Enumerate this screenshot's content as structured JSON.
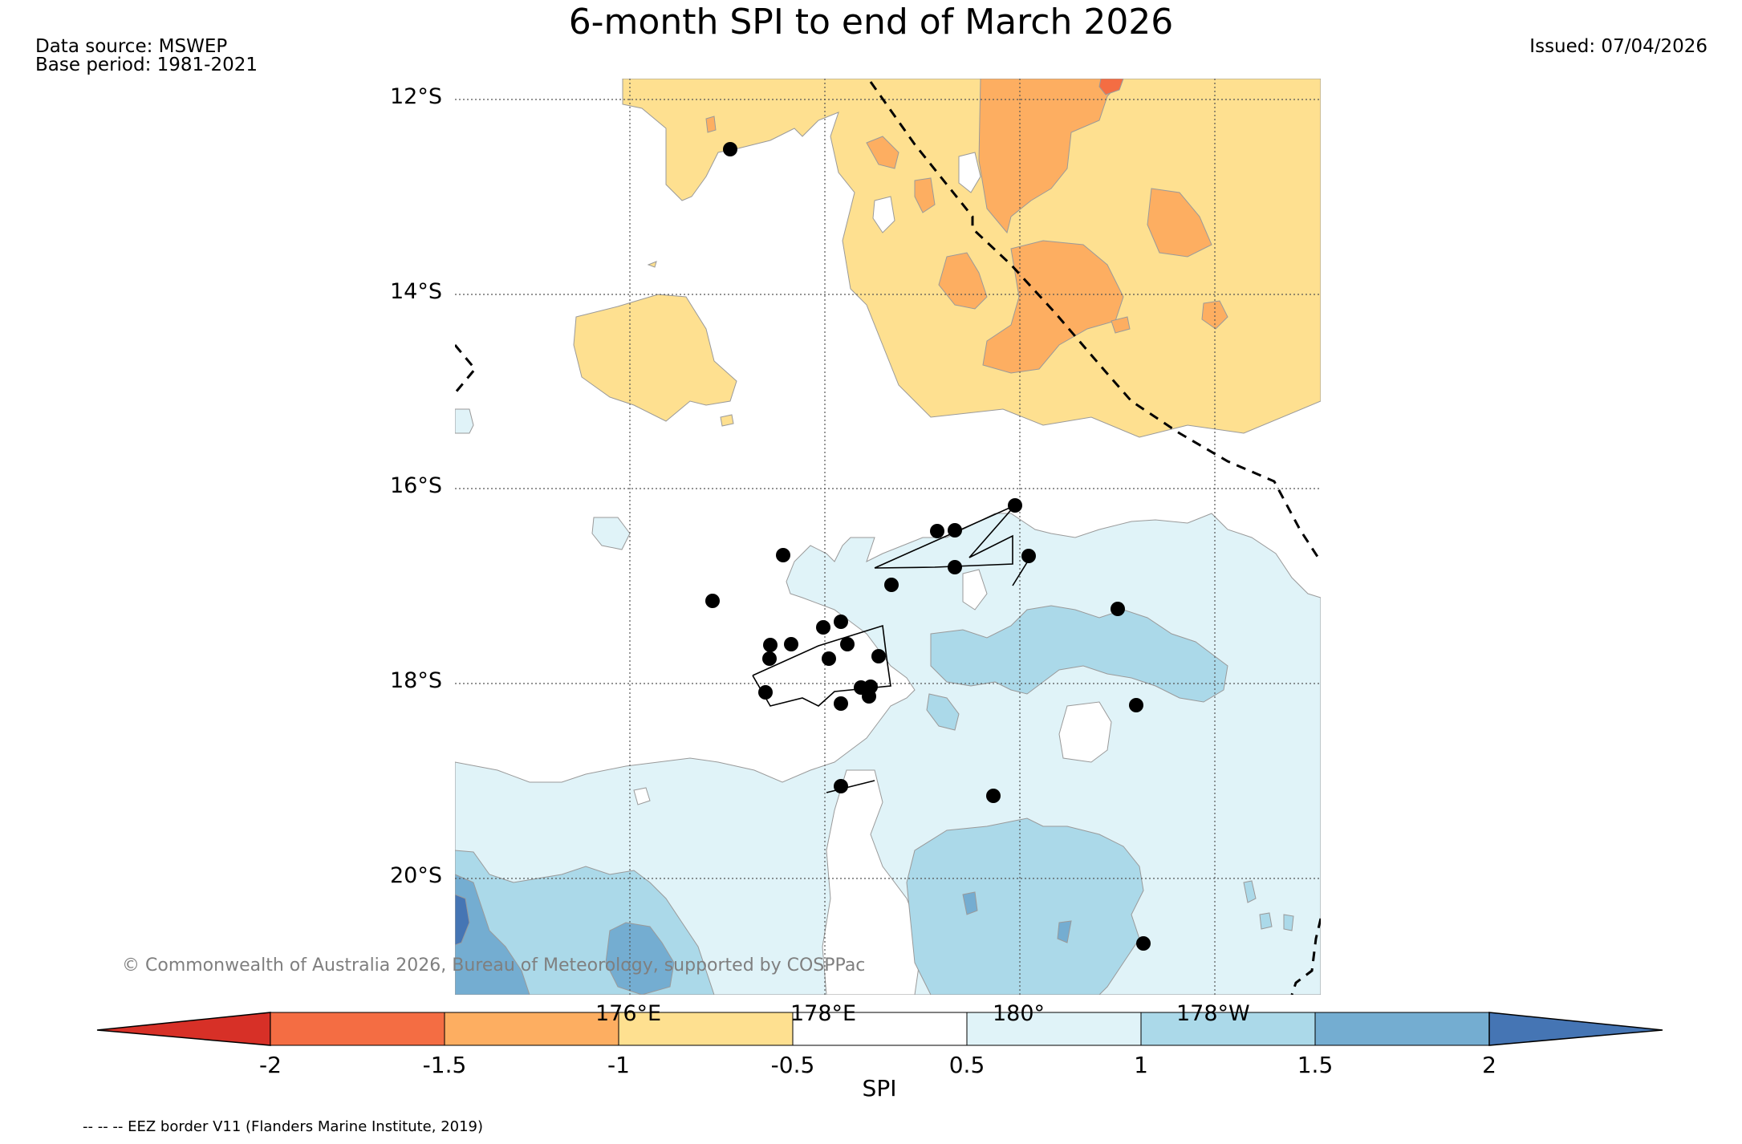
{
  "header": {
    "title": "6-month SPI to end of March 2026",
    "data_source": "Data source: MSWEP",
    "base_period": "Base period: 1981-2021",
    "issued": "Issued: 07/04/2026"
  },
  "map": {
    "lat_labels": [
      "12°S",
      "14°S",
      "16°S",
      "18°S",
      "20°S"
    ],
    "lon_labels": [
      "176°E",
      "178°E",
      "180°",
      "178°W"
    ],
    "copyright": "© Commonwealth of Australia 2026, Bureau of Meteorology, supported by COSPPac",
    "footnote": "-- -- -- EEZ border V11 (Flanders Marine Institute, 2019)"
  },
  "colorbar": {
    "title": "SPI",
    "labels": [
      "-2",
      "-1.5",
      "-1",
      "-0.5",
      "0.5",
      "1",
      "1.5",
      "2"
    ],
    "colors": {
      "lt_m2": "#d73027",
      "m2_m15": "#f46d43",
      "m15_m1": "#fdae61",
      "m1_m05": "#fee090",
      "m05_05": "#ffffff",
      "p05_1": "#e0f3f8",
      "p1_15": "#abd9e9",
      "p15_2": "#74add1",
      "gt_2": "#4575b4"
    }
  }
}
